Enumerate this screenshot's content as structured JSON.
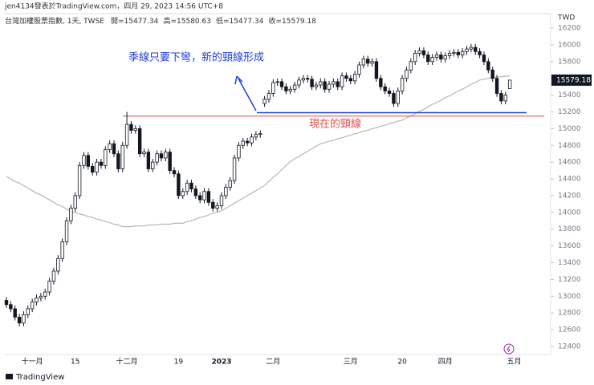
{
  "header": {
    "author": "jen4134發表於TradingView.com，四月 29, 2023 14:56 UTC+8",
    "symbol": "台灣加權股票指數, 1天, TWSE",
    "ohlc_labels": [
      "開=",
      "高=",
      "低=",
      "收="
    ],
    "logo": "TradingView"
  },
  "chart_data": {
    "type": "candlestick",
    "currency": "TWD",
    "categories": [
      null,
      null,
      null,
      null,
      null,
      null,
      "十一月",
      null,
      null,
      null,
      null,
      null,
      null,
      null,
      null,
      null,
      "15",
      null,
      null,
      null,
      null,
      null,
      null,
      null,
      null,
      null,
      null,
      null,
      "十二月",
      null,
      null,
      null,
      null,
      null,
      null,
      null,
      null,
      null,
      null,
      null,
      "19",
      null,
      null,
      null,
      null,
      null,
      null,
      null,
      null,
      null,
      "2023",
      null,
      null,
      null,
      null,
      null,
      null,
      null,
      null,
      null,
      null,
      null,
      "二月",
      null,
      null,
      null,
      null,
      null,
      null,
      null,
      null,
      null,
      null,
      null,
      null,
      null,
      null,
      null,
      null,
      null,
      "三月",
      null,
      null,
      null,
      null,
      null,
      null,
      null,
      null,
      null,
      null,
      null,
      "20",
      null,
      null,
      null,
      null,
      null,
      null,
      null,
      null,
      null,
      "四月",
      null,
      null,
      null,
      null,
      null,
      null,
      null,
      null,
      null,
      null,
      null,
      null,
      null,
      null,
      null,
      "五月"
    ],
    "open": [
      12950,
      12900,
      12850,
      12750,
      12680,
      12780,
      12850,
      12930,
      12980,
      13000,
      13050,
      13180,
      13300,
      13450,
      13650,
      13900,
      14050,
      14200,
      14560,
      14680,
      14550,
      14480,
      14600,
      14560,
      14750,
      14820,
      14700,
      14520,
      14800,
      15050,
      14980,
      15000,
      14700,
      14720,
      14520,
      14600,
      14700,
      14650,
      14720,
      14500,
      14460,
      14200,
      14250,
      14350,
      14280,
      14200,
      14150,
      14250,
      14120,
      14050,
      14080,
      14200,
      14300,
      14380,
      14650,
      14800,
      14850,
      14830,
      14900,
      14930,
      15300,
      15350,
      15420,
      15550,
      15560,
      15500,
      15450,
      15470,
      15520,
      15580,
      15600,
      15590,
      15500,
      15520,
      15560,
      15470,
      15530,
      15560,
      15500,
      15630,
      15600,
      15570,
      15650,
      15760,
      15830,
      15780,
      15800,
      15600,
      15500,
      15450,
      15420,
      15300,
      15450,
      15600,
      15700,
      15800,
      15900,
      15930,
      15880,
      15800,
      15850,
      15880,
      15830,
      15870,
      15900,
      15910,
      15880,
      15920,
      15950,
      15970,
      15920,
      15880,
      15800,
      15700,
      15600,
      15420,
      15330,
      15477.34,
      null
    ],
    "high": [
      12990,
      12940,
      12890,
      12790,
      12820,
      12890,
      12970,
      13020,
      13040,
      13090,
      13220,
      13340,
      13490,
      13690,
      13940,
      14090,
      14240,
      14600,
      14720,
      14720,
      14590,
      14640,
      14640,
      14790,
      14860,
      14860,
      14740,
      14840,
      15200,
      15090,
      15040,
      15040,
      14760,
      14760,
      14640,
      14740,
      14740,
      14760,
      14760,
      14540,
      14500,
      14290,
      14390,
      14390,
      14320,
      14240,
      14290,
      14290,
      14160,
      14120,
      14240,
      14340,
      14420,
      14690,
      14840,
      14890,
      14890,
      14940,
      14970,
      14980,
      15390,
      15460,
      15590,
      15600,
      15600,
      15540,
      15510,
      15560,
      15620,
      15640,
      15640,
      15630,
      15560,
      15600,
      15600,
      15570,
      15600,
      15600,
      15670,
      15670,
      15640,
      15690,
      15800,
      15870,
      15870,
      15840,
      15840,
      15640,
      15540,
      15490,
      15460,
      15490,
      15640,
      15740,
      15840,
      15940,
      15970,
      15970,
      15920,
      15890,
      15920,
      15920,
      15910,
      15940,
      15950,
      15950,
      15960,
      15990,
      16010,
      16010,
      15960,
      15920,
      15840,
      15740,
      15640,
      15460,
      15440,
      15580.63,
      null
    ],
    "low": [
      12860,
      12810,
      12710,
      12640,
      12640,
      12740,
      12810,
      12890,
      12940,
      12960,
      13010,
      13140,
      13260,
      13410,
      13610,
      13860,
      14010,
      14160,
      14520,
      14510,
      14440,
      14440,
      14520,
      14520,
      14710,
      14660,
      14480,
      14480,
      14760,
      14940,
      14940,
      14660,
      14660,
      14480,
      14480,
      14560,
      14610,
      14610,
      14460,
      14420,
      14160,
      14160,
      14210,
      14240,
      14160,
      14110,
      14110,
      14080,
      14010,
      14010,
      14040,
      14160,
      14260,
      14340,
      14610,
      14760,
      14790,
      14790,
      14860,
      14890,
      15260,
      15310,
      15380,
      15510,
      15460,
      15410,
      15410,
      15430,
      15480,
      15540,
      15550,
      15460,
      15460,
      15480,
      15430,
      15430,
      15490,
      15460,
      15460,
      15560,
      15530,
      15530,
      15610,
      15720,
      15740,
      15740,
      15560,
      15460,
      15410,
      15380,
      15260,
      15260,
      15410,
      15560,
      15660,
      15760,
      15860,
      15840,
      15760,
      15760,
      15810,
      15790,
      15790,
      15830,
      15860,
      15840,
      15840,
      15880,
      15910,
      15880,
      15840,
      15760,
      15660,
      15560,
      15380,
      15290,
      15290,
      15477.34,
      null
    ],
    "close": [
      12900,
      12850,
      12750,
      12680,
      12780,
      12850,
      12930,
      12980,
      13000,
      13050,
      13180,
      13300,
      13450,
      13650,
      13900,
      14050,
      14200,
      14560,
      14680,
      14550,
      14480,
      14600,
      14560,
      14750,
      14820,
      14700,
      14520,
      14800,
      15050,
      14980,
      15000,
      14700,
      14720,
      14520,
      14600,
      14700,
      14650,
      14720,
      14500,
      14460,
      14200,
      14250,
      14350,
      14280,
      14200,
      14150,
      14250,
      14120,
      14050,
      14080,
      14200,
      14300,
      14380,
      14650,
      14800,
      14850,
      14830,
      14900,
      14930,
      14940,
      15350,
      15420,
      15550,
      15560,
      15500,
      15450,
      15470,
      15520,
      15580,
      15600,
      15590,
      15500,
      15520,
      15560,
      15470,
      15530,
      15560,
      15500,
      15630,
      15600,
      15570,
      15650,
      15760,
      15830,
      15780,
      15800,
      15600,
      15500,
      15450,
      15420,
      15300,
      15450,
      15600,
      15700,
      15800,
      15900,
      15930,
      15880,
      15800,
      15850,
      15880,
      15830,
      15870,
      15900,
      15910,
      15880,
      15920,
      15950,
      15970,
      15920,
      15880,
      15800,
      15700,
      15600,
      15420,
      15330,
      15400,
      15579.18,
      null
    ],
    "moving_average": {
      "color": "#bdb5b5",
      "values": [
        14430,
        14400,
        14370,
        14350,
        14320,
        14290,
        14260,
        14230,
        14210,
        14180,
        14150,
        14120,
        14090,
        14070,
        14040,
        14010,
        14000,
        13980,
        13970,
        13950,
        13940,
        13920,
        13910,
        13890,
        13880,
        13860,
        13850,
        13830,
        13830,
        13830,
        13840,
        13840,
        13840,
        13850,
        13850,
        13850,
        13860,
        13860,
        13860,
        13870,
        13870,
        13870,
        13890,
        13900,
        13920,
        13940,
        13950,
        13970,
        13990,
        14000,
        14020,
        14050,
        14080,
        14110,
        14140,
        14170,
        14200,
        14230,
        14260,
        14290,
        14320,
        14370,
        14420,
        14460,
        14510,
        14560,
        14610,
        14640,
        14670,
        14700,
        14730,
        14760,
        14790,
        14820,
        14830,
        14850,
        14860,
        14880,
        14890,
        14910,
        14920,
        14940,
        14950,
        14970,
        14980,
        15000,
        15010,
        15030,
        15040,
        15060,
        15070,
        15090,
        15100,
        15130,
        15150,
        15180,
        15210,
        15230,
        15260,
        15290,
        15310,
        15340,
        15370,
        15390,
        15420,
        15450,
        15470,
        15500,
        15530,
        15550,
        15580,
        15590,
        15600,
        15610,
        15615,
        15620,
        15625,
        15630,
        null
      ]
    },
    "up_color": "#ffffff",
    "down_color": "#131722",
    "ylim": [
      12304,
      16363
    ],
    "yticks": [
      12400,
      12600,
      12800,
      13000,
      13200,
      13400,
      13600,
      13800,
      14000,
      14200,
      14400,
      14600,
      14800,
      15000,
      15200,
      15400,
      15600,
      15800,
      16000,
      16200
    ],
    "levels": [
      {
        "value": 15190,
        "color": "#1e3fd8",
        "label": "季線只要下彎，新的頸線形成"
      },
      {
        "value": 15150,
        "color": "#e04a4a",
        "label": "現在的頸線"
      }
    ]
  }
}
